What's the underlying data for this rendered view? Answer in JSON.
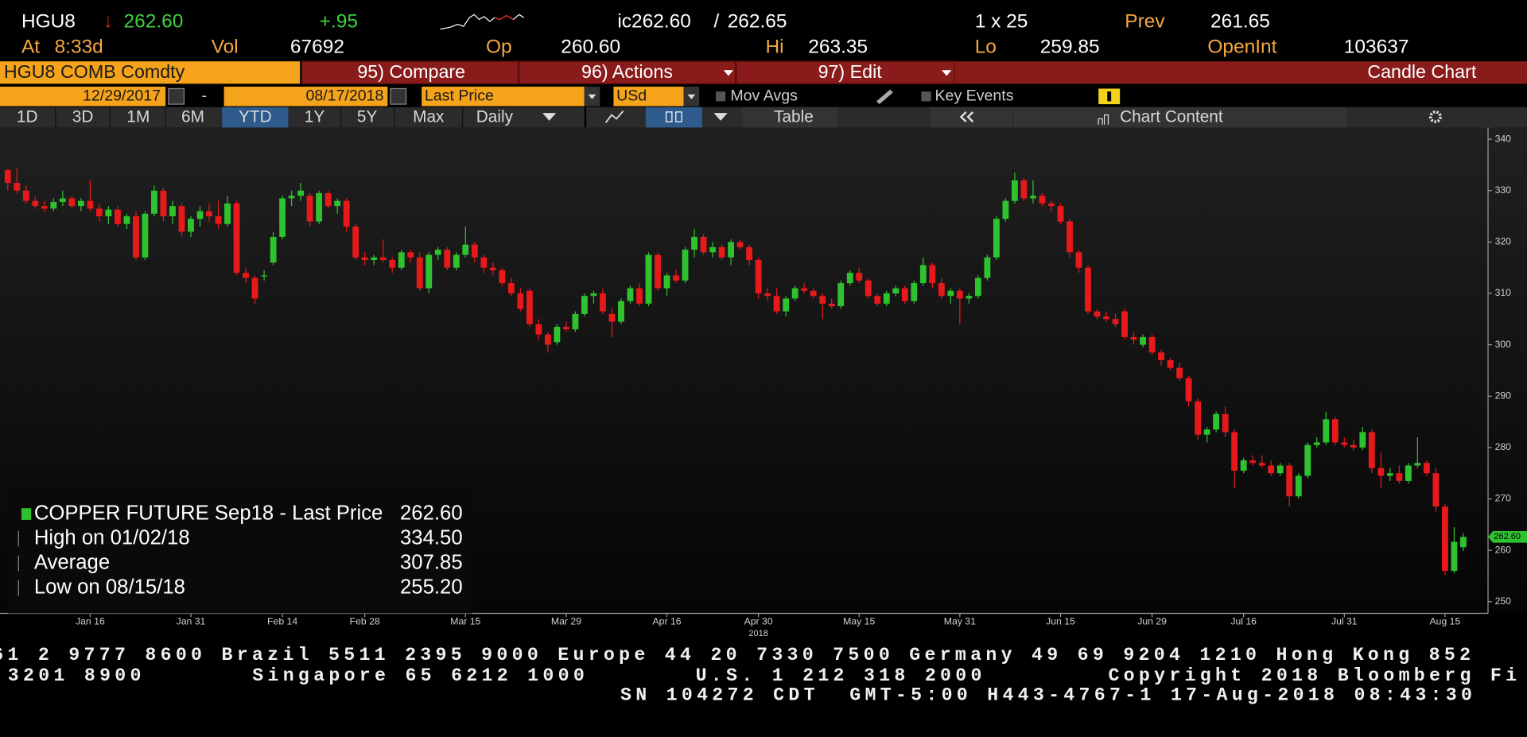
{
  "header": {
    "ticker": "HGU8",
    "arrow": "↓",
    "last": "262.60",
    "change": "+.95",
    "bid": "ic262.60",
    "sep": "/",
    "ask": "262.65",
    "size": "1 x 25",
    "prev_label": "Prev",
    "prev": "261.65",
    "time_label": "At",
    "time": "8:33d",
    "vol_label": "Vol",
    "vol": "67692",
    "open_label": "Op",
    "open": "260.60",
    "high_label": "Hi",
    "high": "263.35",
    "low_label": "Lo",
    "low": "259.85",
    "oi_label": "OpenInt",
    "oi": "103637"
  },
  "menu": {
    "security": "HGU8 COMB Comdty",
    "compare": "95) Compare",
    "actions": "96) Actions",
    "edit": "97) Edit",
    "view": "Candle Chart"
  },
  "controls": {
    "start": "12/29/2017",
    "dash": "-",
    "end": "08/17/2018",
    "field": "Last Price",
    "currency": "USd",
    "mov_avgs": "Mov Avgs",
    "key_events": "Key Events"
  },
  "toolbar": {
    "periods": [
      "1D",
      "3D",
      "1M",
      "6M",
      "YTD",
      "1Y",
      "5Y",
      "Max"
    ],
    "frequency": "Daily",
    "table": "Table",
    "chart_content": "Chart Content"
  },
  "footer": [
    "61 2 9777 8600 Brazil 5511 2395 9000 Europe 44 20 7330 7500 Germany 49 69 9204 1210 Hong Kong 852",
    "3201 8900       Singapore 65 6212 1000       U.S. 1 212 318 2000        Copyright 2018 Bloomberg Fi",
    "SN 104272 CDT  GMT-5:00 H443-4767-1 17-Aug-2018 08:43:30"
  ],
  "chart_data": {
    "type": "candlestick",
    "up_color": "#2fc22f",
    "down_color": "#e8191b",
    "categories": [
      null,
      null,
      null,
      null,
      null,
      null,
      null,
      null,
      null,
      "Jan 16",
      null,
      null,
      null,
      null,
      null,
      null,
      null,
      null,
      null,
      null,
      "Jan 31",
      null,
      null,
      null,
      null,
      null,
      null,
      null,
      null,
      null,
      "Feb 14",
      null,
      null,
      null,
      null,
      null,
      null,
      null,
      null,
      "Feb 28",
      null,
      null,
      null,
      null,
      null,
      null,
      null,
      null,
      null,
      null,
      "Mar 15",
      null,
      null,
      null,
      null,
      null,
      null,
      null,
      null,
      null,
      null,
      "Mar 29",
      null,
      null,
      null,
      null,
      null,
      null,
      null,
      null,
      null,
      null,
      "Apr 16",
      null,
      null,
      null,
      null,
      null,
      null,
      null,
      null,
      null,
      "Apr 30",
      null,
      null,
      null,
      null,
      null,
      null,
      null,
      null,
      null,
      null,
      "May 15",
      null,
      null,
      null,
      null,
      null,
      null,
      null,
      null,
      null,
      null,
      "May 31",
      null,
      null,
      null,
      null,
      null,
      null,
      null,
      null,
      null,
      null,
      "Jun 15",
      null,
      null,
      null,
      null,
      null,
      null,
      null,
      null,
      null,
      "Jun 29",
      null,
      null,
      null,
      null,
      null,
      null,
      null,
      null,
      null,
      "Jul 16",
      null,
      null,
      null,
      null,
      null,
      null,
      null,
      null,
      null,
      null,
      "Jul 31",
      null,
      null,
      null,
      null,
      null,
      null,
      null,
      null,
      null,
      null,
      "Aug 15",
      null,
      null
    ],
    "year_label": "2018",
    "candles": [
      [
        334.0,
        334.2,
        330.0,
        331.5
      ],
      [
        331.5,
        334.5,
        329.5,
        330.0
      ],
      [
        330.0,
        331.0,
        327.5,
        328.0
      ],
      [
        328.0,
        328.8,
        326.5,
        327.0
      ],
      [
        327.0,
        328.0,
        325.8,
        326.5
      ],
      [
        326.5,
        328.5,
        326.0,
        327.8
      ],
      [
        327.8,
        330.0,
        327.0,
        328.5
      ],
      [
        328.5,
        329.0,
        326.5,
        327.0
      ],
      [
        327.0,
        328.5,
        326.0,
        328.0
      ],
      [
        328.0,
        332.0,
        326.0,
        326.5
      ],
      [
        326.5,
        327.5,
        324.0,
        325.0
      ],
      [
        325.0,
        327.0,
        323.5,
        326.3
      ],
      [
        326.3,
        327.0,
        323.0,
        323.5
      ],
      [
        323.5,
        325.5,
        322.5,
        325.0
      ],
      [
        325.0,
        326.0,
        316.5,
        317.0
      ],
      [
        317.0,
        326.0,
        316.5,
        325.5
      ],
      [
        325.5,
        331.0,
        325.0,
        330.0
      ],
      [
        330.0,
        330.5,
        324.0,
        325.0
      ],
      [
        325.0,
        328.0,
        323.5,
        327.0
      ],
      [
        327.0,
        327.5,
        321.0,
        322.0
      ],
      [
        322.0,
        325.0,
        321.0,
        324.5
      ],
      [
        324.5,
        327.0,
        323.0,
        326.0
      ],
      [
        326.0,
        327.5,
        324.0,
        325.0
      ],
      [
        325.0,
        328.0,
        322.5,
        323.5
      ],
      [
        323.5,
        329.0,
        323.0,
        327.5
      ],
      [
        327.5,
        328.0,
        313.5,
        314.0
      ],
      [
        314.0,
        315.0,
        312.0,
        313.0
      ],
      [
        313.0,
        313.5,
        308.0,
        309.0
      ],
      [
        313.5,
        314.5,
        312.5,
        313.5
      ],
      [
        316.0,
        322.0,
        315.5,
        321.0
      ],
      [
        321.0,
        329.0,
        320.5,
        328.5
      ],
      [
        328.5,
        330.0,
        327.0,
        329.0
      ],
      [
        329.0,
        331.5,
        328.0,
        330.0
      ],
      [
        329.0,
        329.5,
        323.0,
        324.0
      ],
      [
        324.0,
        330.0,
        323.5,
        329.5
      ],
      [
        329.5,
        330.0,
        326.5,
        327.0
      ],
      [
        327.0,
        328.5,
        325.5,
        328.0
      ],
      [
        328.0,
        328.5,
        322.0,
        323.0
      ],
      [
        323.0,
        323.5,
        316.5,
        317.0
      ],
      [
        317.0,
        318.0,
        315.5,
        316.5
      ],
      [
        316.5,
        317.5,
        315.5,
        317.0
      ],
      [
        317.0,
        320.5,
        316.0,
        316.5
      ],
      [
        316.5,
        317.0,
        314.0,
        315.0
      ],
      [
        315.0,
        318.5,
        314.5,
        318.0
      ],
      [
        318.0,
        318.5,
        316.0,
        317.0
      ],
      [
        317.0,
        318.0,
        310.5,
        311.0
      ],
      [
        311.0,
        318.0,
        310.0,
        317.5
      ],
      [
        317.5,
        319.0,
        316.5,
        318.5
      ],
      [
        318.5,
        319.0,
        314.5,
        315.0
      ],
      [
        315.0,
        318.0,
        314.5,
        317.5
      ],
      [
        317.5,
        323.0,
        317.0,
        319.5
      ],
      [
        319.5,
        320.0,
        316.0,
        317.0
      ],
      [
        317.0,
        317.5,
        314.0,
        315.0
      ],
      [
        315.0,
        316.0,
        313.5,
        314.5
      ],
      [
        314.5,
        315.0,
        311.5,
        312.0
      ],
      [
        312.0,
        313.0,
        309.5,
        310.0
      ],
      [
        310.0,
        311.0,
        306.5,
        307.0
      ],
      [
        310.5,
        311.0,
        303.5,
        304.0
      ],
      [
        304.0,
        305.0,
        301.0,
        302.0
      ],
      [
        302.0,
        302.5,
        298.5,
        300.0
      ],
      [
        300.5,
        304.0,
        300.0,
        303.5
      ],
      [
        303.5,
        304.5,
        302.5,
        303.0
      ],
      [
        303.0,
        306.5,
        302.5,
        306.0
      ],
      [
        306.0,
        310.0,
        305.5,
        309.5
      ],
      [
        309.5,
        310.5,
        308.0,
        310.0
      ],
      [
        310.0,
        311.0,
        306.0,
        306.5
      ],
      [
        306.0,
        307.0,
        301.5,
        304.5
      ],
      [
        304.5,
        309.0,
        304.0,
        308.5
      ],
      [
        308.5,
        311.5,
        308.0,
        311.0
      ],
      [
        311.0,
        312.0,
        307.5,
        308.0
      ],
      [
        308.0,
        318.0,
        307.5,
        317.5
      ],
      [
        317.5,
        318.0,
        310.5,
        311.0
      ],
      [
        311.0,
        314.0,
        309.5,
        313.5
      ],
      [
        313.5,
        314.5,
        312.0,
        312.5
      ],
      [
        312.5,
        319.0,
        312.0,
        318.5
      ],
      [
        318.5,
        322.5,
        317.0,
        321.0
      ],
      [
        321.0,
        321.5,
        317.5,
        318.0
      ],
      [
        318.0,
        320.0,
        317.0,
        319.0
      ],
      [
        319.0,
        319.5,
        316.5,
        317.0
      ],
      [
        317.0,
        320.5,
        315.5,
        320.0
      ],
      [
        320.0,
        320.5,
        318.5,
        319.0
      ],
      [
        319.0,
        319.5,
        315.5,
        316.5
      ],
      [
        316.5,
        317.0,
        309.0,
        310.0
      ],
      [
        310.0,
        311.0,
        308.5,
        309.5
      ],
      [
        309.5,
        311.0,
        306.0,
        306.5
      ],
      [
        306.5,
        309.5,
        305.5,
        309.0
      ],
      [
        309.0,
        311.5,
        308.5,
        311.0
      ],
      [
        311.0,
        312.0,
        310.0,
        310.5
      ],
      [
        310.5,
        311.0,
        309.0,
        309.5
      ],
      [
        309.5,
        310.0,
        305.0,
        308.0
      ],
      [
        308.0,
        309.0,
        307.0,
        307.5
      ],
      [
        307.5,
        312.5,
        307.0,
        312.0
      ],
      [
        312.0,
        314.5,
        311.5,
        314.0
      ],
      [
        314.0,
        315.0,
        312.0,
        312.5
      ],
      [
        312.5,
        313.0,
        309.0,
        309.5
      ],
      [
        309.5,
        310.0,
        307.5,
        308.0
      ],
      [
        308.0,
        310.5,
        307.5,
        310.0
      ],
      [
        310.0,
        311.5,
        309.5,
        311.0
      ],
      [
        311.0,
        311.5,
        308.0,
        308.5
      ],
      [
        308.5,
        312.5,
        308.0,
        312.0
      ],
      [
        312.0,
        317.0,
        311.5,
        315.5
      ],
      [
        315.5,
        316.0,
        311.0,
        312.0
      ],
      [
        312.0,
        313.0,
        309.0,
        309.5
      ],
      [
        309.5,
        311.0,
        308.0,
        310.5
      ],
      [
        310.5,
        311.0,
        304.0,
        309.0
      ],
      [
        309.0,
        310.0,
        308.0,
        309.5
      ],
      [
        309.5,
        313.5,
        309.0,
        313.0
      ],
      [
        313.0,
        317.5,
        312.5,
        317.0
      ],
      [
        317.0,
        325.0,
        316.5,
        324.5
      ],
      [
        324.5,
        328.5,
        324.0,
        328.0
      ],
      [
        328.0,
        333.5,
        327.5,
        332.0
      ],
      [
        332.0,
        332.5,
        328.0,
        328.5
      ],
      [
        328.5,
        332.0,
        327.5,
        329.0
      ],
      [
        329.0,
        329.5,
        327.0,
        327.5
      ],
      [
        327.5,
        328.0,
        326.0,
        327.0
      ],
      [
        327.0,
        327.5,
        323.5,
        324.0
      ],
      [
        324.0,
        324.5,
        317.0,
        318.0
      ],
      [
        318.0,
        318.5,
        314.0,
        315.0
      ],
      [
        315.0,
        315.5,
        306.0,
        306.5
      ],
      [
        306.5,
        307.0,
        305.0,
        305.5
      ],
      [
        305.5,
        306.5,
        304.5,
        305.0
      ],
      [
        305.0,
        306.0,
        303.5,
        304.0
      ],
      [
        306.5,
        307.0,
        301.0,
        301.5
      ],
      [
        301.5,
        302.5,
        300.0,
        301.0
      ],
      [
        300.0,
        302.0,
        299.5,
        301.5
      ],
      [
        301.5,
        302.0,
        298.0,
        298.5
      ],
      [
        298.5,
        299.0,
        296.0,
        297.0
      ],
      [
        297.0,
        297.5,
        295.0,
        295.5
      ],
      [
        295.5,
        296.5,
        293.0,
        293.5
      ],
      [
        293.5,
        294.0,
        288.0,
        289.0
      ],
      [
        289.0,
        289.5,
        281.5,
        282.5
      ],
      [
        282.5,
        284.0,
        281.0,
        283.5
      ],
      [
        283.5,
        287.0,
        283.0,
        286.5
      ],
      [
        286.5,
        288.0,
        282.0,
        283.0
      ],
      [
        283.0,
        283.5,
        272.0,
        275.5
      ],
      [
        275.5,
        278.0,
        275.0,
        277.5
      ],
      [
        277.5,
        278.5,
        276.5,
        277.0
      ],
      [
        277.0,
        278.5,
        276.0,
        276.5
      ],
      [
        276.5,
        277.5,
        274.5,
        275.0
      ],
      [
        275.0,
        277.0,
        274.5,
        276.5
      ],
      [
        276.5,
        277.0,
        268.5,
        270.5
      ],
      [
        270.5,
        275.0,
        270.0,
        274.5
      ],
      [
        274.5,
        281.0,
        274.0,
        280.5
      ],
      [
        280.5,
        282.0,
        280.0,
        281.0
      ],
      [
        281.0,
        287.0,
        280.5,
        285.5
      ],
      [
        285.5,
        286.0,
        280.5,
        281.0
      ],
      [
        281.0,
        282.0,
        280.0,
        280.5
      ],
      [
        280.5,
        281.5,
        279.5,
        280.0
      ],
      [
        280.0,
        284.0,
        279.5,
        283.0
      ],
      [
        283.0,
        283.5,
        275.0,
        276.0
      ],
      [
        276.0,
        279.0,
        272.0,
        274.5
      ],
      [
        274.5,
        276.0,
        273.5,
        275.0
      ],
      [
        275.0,
        276.5,
        273.0,
        273.5
      ],
      [
        273.5,
        277.0,
        273.0,
        276.5
      ],
      [
        276.5,
        282.0,
        276.0,
        277.0
      ],
      [
        277.0,
        277.5,
        274.5,
        275.0
      ],
      [
        275.0,
        276.0,
        267.5,
        268.5
      ],
      [
        268.5,
        269.0,
        255.2,
        256.0
      ],
      [
        256.0,
        264.5,
        255.5,
        261.65
      ],
      [
        260.6,
        263.35,
        259.85,
        262.6
      ]
    ],
    "ylim": [
      250,
      340
    ],
    "yticks": [
      250,
      260,
      270,
      280,
      290,
      300,
      310,
      320,
      330,
      340
    ],
    "last_price_label": "262.60",
    "legend": [
      {
        "label": "COPPER FUTURE Sep18 - Last Price",
        "value": "262.60"
      },
      {
        "label": "High on 01/02/18",
        "value": "334.50"
      },
      {
        "label": "Average",
        "value": "307.85"
      },
      {
        "label": "Low on 08/15/18",
        "value": "255.20"
      }
    ]
  }
}
